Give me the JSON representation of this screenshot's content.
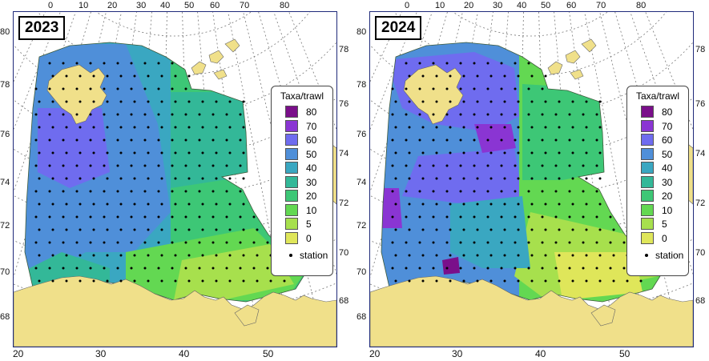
{
  "panels": [
    {
      "year": "2023",
      "top_lon_labels": [
        "0",
        "10",
        "20",
        "30",
        "40",
        "50",
        "60",
        "70",
        "80"
      ],
      "bottom_lon_labels": [
        "20",
        "30",
        "40",
        "50"
      ],
      "left_lat_labels": [
        "80",
        "78",
        "76",
        "74",
        "72",
        "70",
        "68"
      ],
      "right_lat_labels": [
        "78",
        "76",
        "74",
        "72",
        "70",
        "68"
      ]
    },
    {
      "year": "2024",
      "top_lon_labels": [
        "0",
        "10",
        "20",
        "30",
        "40",
        "50",
        "60",
        "70",
        "80"
      ],
      "bottom_lon_labels": [
        "20",
        "30",
        "40",
        "50"
      ],
      "left_lat_labels": [
        "80",
        "78",
        "76",
        "74",
        "72",
        "70",
        "68"
      ],
      "right_lat_labels": [
        "78",
        "76",
        "74",
        "72",
        "70",
        "68"
      ]
    }
  ],
  "legend": {
    "title": "Taxa/trawl",
    "levels": [
      {
        "label": "80",
        "color": "#7a0f8a"
      },
      {
        "label": "70",
        "color": "#8a35d3"
      },
      {
        "label": "60",
        "color": "#6f6cef"
      },
      {
        "label": "50",
        "color": "#4f8fd9"
      },
      {
        "label": "40",
        "color": "#3aa7c1"
      },
      {
        "label": "30",
        "color": "#33b898"
      },
      {
        "label": "20",
        "color": "#3dc776"
      },
      {
        "label": "10",
        "color": "#63d852"
      },
      {
        "label": "5",
        "color": "#a7e04d"
      },
      {
        "label": "0",
        "color": "#dfe65a"
      }
    ],
    "station_label": "station"
  },
  "colors": {
    "land": "#f0e08a",
    "frame": "#1f2a7a",
    "graticule": "#777777"
  }
}
